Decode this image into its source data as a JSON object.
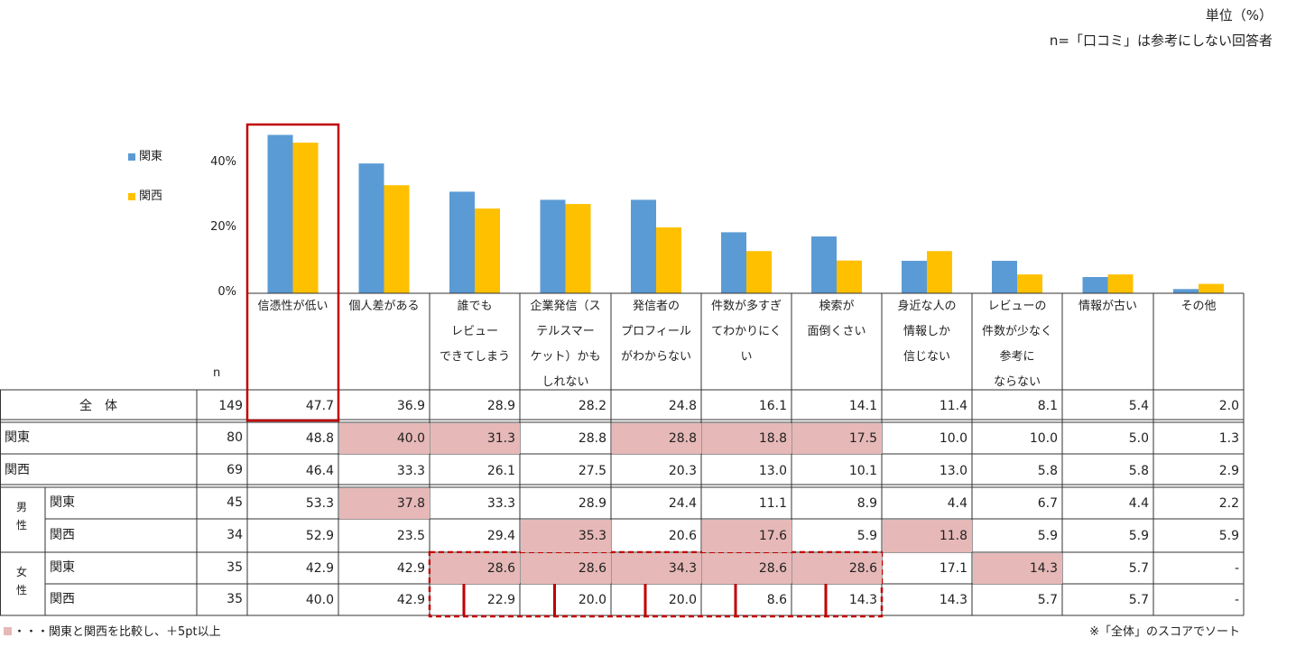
{
  "header": {
    "unit": "単位（%）",
    "n_note": "n=「口コミ」は参考にしない回答者"
  },
  "chart_data": {
    "type": "bar",
    "categories": [
      "信憑性が低い",
      "個人差がある",
      "誰でも\nレビュー\nできてしまう",
      "企業発信（ス\nテルスマー\nケット）かも\nしれない",
      "発信者の\nプロフィール\nがわからない",
      "件数が多すぎ\nてわかりにく\nい",
      "検索が\n面倒くさい",
      "身近な人の\n情報しか\n信じない",
      "レビューの\n件数が少なく\n参考に\nならない",
      "情報が古い",
      "その他"
    ],
    "series": [
      {
        "name": "関東",
        "color": "#5b9bd5",
        "values": [
          48.8,
          40.0,
          31.3,
          28.8,
          28.8,
          18.8,
          17.5,
          10.0,
          10.0,
          5.0,
          1.3
        ]
      },
      {
        "name": "関西",
        "color": "#ffc000",
        "values": [
          46.4,
          33.3,
          26.1,
          27.5,
          20.3,
          13.0,
          10.1,
          13.0,
          5.8,
          5.8,
          2.9
        ]
      }
    ],
    "ylim": [
      0,
      50
    ],
    "yticks": [
      "0%",
      "20%",
      "40%"
    ],
    "ytick_values": [
      0,
      20,
      40
    ],
    "legend_position": "left",
    "highlight_category": 0
  },
  "table": {
    "n_header": "n",
    "rows": [
      {
        "group": "",
        "label": "全　体",
        "n": "149",
        "values": [
          "47.7",
          "36.9",
          "28.9",
          "28.2",
          "24.8",
          "16.1",
          "14.1",
          "11.4",
          "8.1",
          "5.4",
          "2.0"
        ],
        "highlight": []
      },
      {
        "group": "",
        "label": "関東",
        "n": "80",
        "values": [
          "48.8",
          "40.0",
          "31.3",
          "28.8",
          "28.8",
          "18.8",
          "17.5",
          "10.0",
          "10.0",
          "5.0",
          "1.3"
        ],
        "highlight": [
          1,
          2,
          4,
          5,
          6
        ]
      },
      {
        "group": "",
        "label": "関西",
        "n": "69",
        "values": [
          "46.4",
          "33.3",
          "26.1",
          "27.5",
          "20.3",
          "13.0",
          "10.1",
          "13.0",
          "5.8",
          "5.8",
          "2.9"
        ],
        "highlight": []
      },
      {
        "group": "男性",
        "label": "関東",
        "n": "45",
        "values": [
          "53.3",
          "37.8",
          "33.3",
          "28.9",
          "24.4",
          "11.1",
          "8.9",
          "4.4",
          "6.7",
          "4.4",
          "2.2"
        ],
        "highlight": [
          1
        ]
      },
      {
        "group": "男性",
        "label": "関西",
        "n": "34",
        "values": [
          "52.9",
          "23.5",
          "29.4",
          "35.3",
          "20.6",
          "17.6",
          "5.9",
          "11.8",
          "5.9",
          "5.9",
          "5.9"
        ],
        "highlight": [
          3,
          5,
          7
        ]
      },
      {
        "group": "女性",
        "label": "関東",
        "n": "35",
        "values": [
          "42.9",
          "42.9",
          "28.6",
          "28.6",
          "34.3",
          "28.6",
          "28.6",
          "17.1",
          "14.3",
          "5.7",
          "-"
        ],
        "highlight": [
          2,
          3,
          4,
          5,
          6,
          8
        ]
      },
      {
        "group": "女性",
        "label": "関西",
        "n": "35",
        "values": [
          "40.0",
          "42.9",
          "22.9",
          "20.0",
          "20.0",
          "8.6",
          "14.3",
          "14.3",
          "5.7",
          "5.7",
          "-"
        ],
        "highlight": []
      }
    ],
    "groups": [
      {
        "label": "男\n性"
      },
      {
        "label": "女\n性"
      }
    ]
  },
  "footer": {
    "legend_text": "・・・関東と関西を比較し、＋5pt以上",
    "sort_note": "※「全体」のスコアでソート"
  },
  "colors": {
    "kanto": "#5b9bd5",
    "kansai": "#ffc000",
    "highlight_cell": "#e6b8b7",
    "red_frame": "#c00000"
  }
}
